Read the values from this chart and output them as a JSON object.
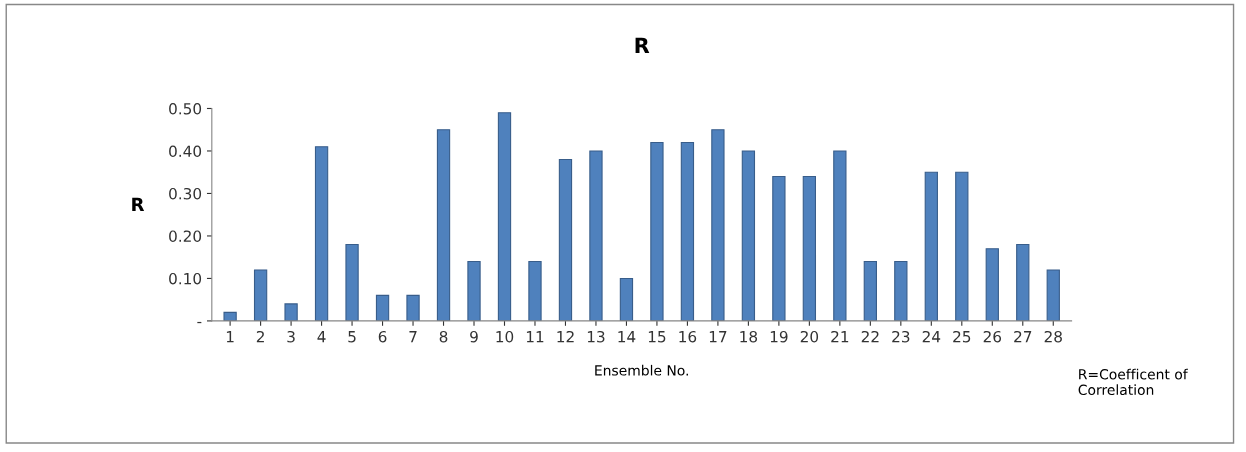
{
  "chart_data": {
    "type": "bar",
    "title": "R",
    "xlabel": "Ensemble No.",
    "ylabel": "R",
    "categories": [
      "1",
      "2",
      "3",
      "4",
      "5",
      "6",
      "7",
      "8",
      "9",
      "10",
      "11",
      "12",
      "13",
      "14",
      "15",
      "16",
      "17",
      "18",
      "19",
      "20",
      "21",
      "22",
      "23",
      "24",
      "25",
      "26",
      "27",
      "28"
    ],
    "values": [
      0.02,
      0.12,
      0.04,
      0.41,
      0.18,
      0.06,
      0.06,
      0.45,
      0.14,
      0.49,
      0.14,
      0.38,
      0.4,
      0.1,
      0.42,
      0.42,
      0.45,
      0.4,
      0.34,
      0.34,
      0.4,
      0.14,
      0.14,
      0.35,
      0.35,
      0.17,
      0.18,
      0.12
    ],
    "color": "#4f81bd",
    "ylim": [
      0,
      0.5
    ],
    "yticks": [
      {
        "value": 0,
        "label": "-"
      },
      {
        "value": 0.1,
        "label": "0.10"
      },
      {
        "value": 0.2,
        "label": "0.20"
      },
      {
        "value": 0.3,
        "label": "0.30"
      },
      {
        "value": 0.4,
        "label": "0.40"
      },
      {
        "value": 0.5,
        "label": "0.50"
      }
    ],
    "grid": false,
    "legend": false,
    "annotations": [
      "R=Coefficent of Correlation"
    ]
  }
}
